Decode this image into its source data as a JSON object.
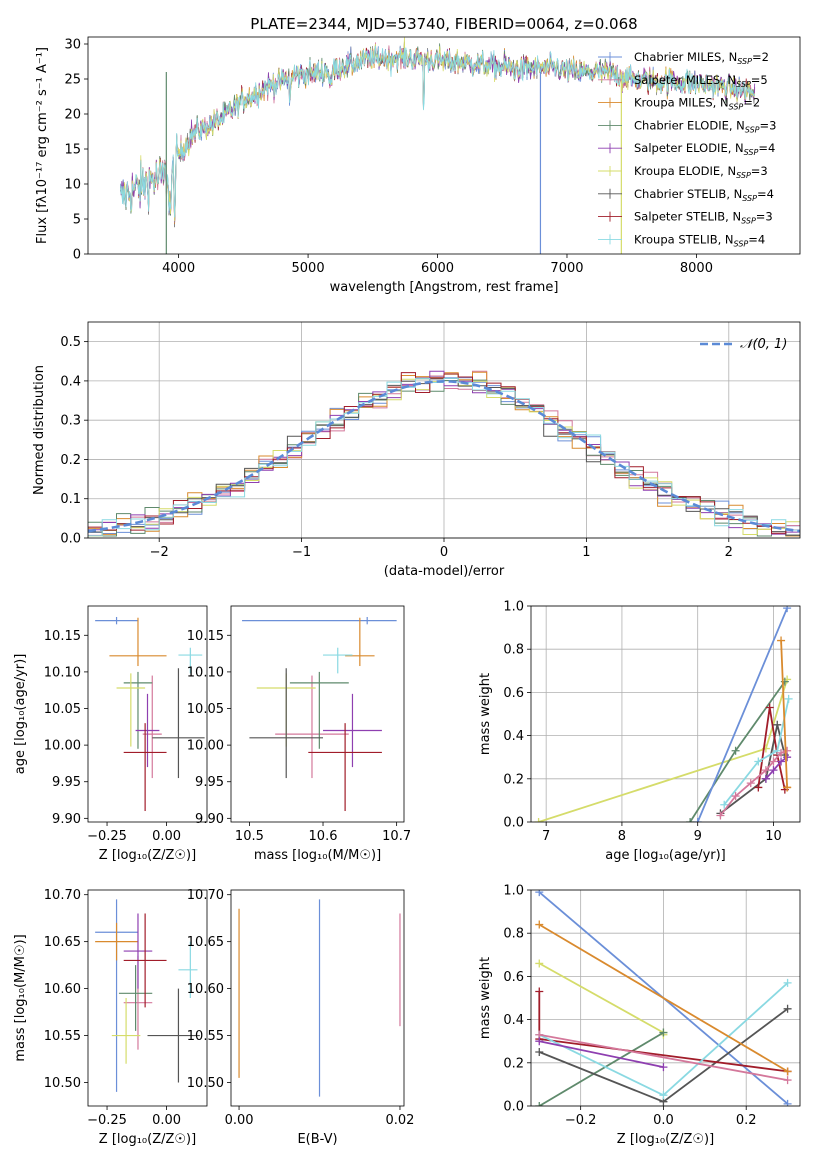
{
  "figure_title": "PLATE=2344, MJD=53740, FIBERID=0064, z=0.068",
  "colors": [
    "#6b8fd8",
    "#d4789b",
    "#d98a2e",
    "#5f8a6c",
    "#8e3fb0",
    "#d5dc6a",
    "#555555",
    "#a11d2a",
    "#8ad9e2"
  ],
  "chart_data": [
    {
      "id": "spectrum",
      "type": "line",
      "title": "PLATE=2344, MJD=53740, FIBERID=0064, z=0.068",
      "xlabel": "wavelength [Angstrom, rest frame]",
      "ylabel": "Flux [fλ10⁻¹⁷ erg cm⁻² s⁻¹ A⁻¹]",
      "xlim": [
        3300,
        8800
      ],
      "ylim": [
        0,
        31
      ],
      "xticks": [
        4000,
        5000,
        6000,
        7000,
        8000
      ],
      "yticks": [
        0,
        5,
        10,
        15,
        20,
        25,
        30
      ],
      "grid": false,
      "legend_position": "right",
      "continuum": [
        [
          3550,
          8
        ],
        [
          3650,
          9
        ],
        [
          3780,
          10.5
        ],
        [
          3880,
          11
        ],
        [
          3950,
          11
        ],
        [
          4000,
          14
        ],
        [
          4100,
          17
        ],
        [
          4200,
          18
        ],
        [
          4300,
          19
        ],
        [
          4500,
          22
        ],
        [
          4700,
          24
        ],
        [
          4900,
          25.5
        ],
        [
          5100,
          26
        ],
        [
          5300,
          27
        ],
        [
          5500,
          28
        ],
        [
          5800,
          28
        ],
        [
          6100,
          27.5
        ],
        [
          6400,
          27
        ],
        [
          6600,
          26.5
        ],
        [
          6900,
          26.5
        ],
        [
          7100,
          26
        ],
        [
          7300,
          26
        ],
        [
          7500,
          25
        ],
        [
          7900,
          24.5
        ],
        [
          8200,
          24
        ],
        [
          8450,
          23
        ]
      ],
      "series": [
        {
          "name": "Chabrier MILES, N_SSP=2",
          "label_main": "Chabrier MILES, N",
          "label_sub": "SSP",
          "label_tail": "=2"
        },
        {
          "name": "Salpeter MILES, N_SSP=5",
          "label_main": "Salpeter MILES, N",
          "label_sub": "SSP",
          "label_tail": "=5"
        },
        {
          "name": "Kroupa MILES, N_SSP=2",
          "label_main": "Kroupa MILES, N",
          "label_sub": "SSP",
          "label_tail": "=2"
        },
        {
          "name": "Chabrier ELODIE, N_SSP=3",
          "label_main": "Chabrier ELODIE, N",
          "label_sub": "SSP",
          "label_tail": "=3"
        },
        {
          "name": "Salpeter ELODIE, N_SSP=4",
          "label_main": "Salpeter ELODIE, N",
          "label_sub": "SSP",
          "label_tail": "=4"
        },
        {
          "name": "Kroupa ELODIE, N_SSP=3",
          "label_main": "Kroupa ELODIE, N",
          "label_sub": "SSP",
          "label_tail": "=3"
        },
        {
          "name": "Chabrier STELIB, N_SSP=4",
          "label_main": "Chabrier STELIB, N",
          "label_sub": "SSP",
          "label_tail": "=4"
        },
        {
          "name": "Salpeter STELIB, N_SSP=3",
          "label_main": "Salpeter STELIB, N",
          "label_sub": "SSP",
          "label_tail": "=3"
        },
        {
          "name": "Kroupa STELIB, N_SSP=4",
          "label_main": "Kroupa STELIB, N",
          "label_sub": "SSP",
          "label_tail": "=4"
        }
      ]
    },
    {
      "id": "residuals",
      "type": "line",
      "xlabel": "(data-model)/error",
      "ylabel": "Normed distribution",
      "xlim": [
        -2.5,
        2.5
      ],
      "ylim": [
        0,
        0.55
      ],
      "xticks": [
        -2,
        -1,
        0,
        1,
        2
      ],
      "yticks": [
        0.0,
        0.1,
        0.2,
        0.3,
        0.4,
        0.5
      ],
      "grid": true,
      "legend_position": "top-right",
      "reference_curve": {
        "name": "𝒩(0, 1)",
        "mean": 0,
        "sigma": 1,
        "style": "dashed"
      },
      "bin_width": 0.1
    },
    {
      "id": "age_vs_Z",
      "type": "scatter",
      "xlabel": "Z [log₁₀(Z/Z☉)]",
      "ylabel": "age [log₁₀(age/yr)]",
      "xlim": [
        -0.33,
        0.17
      ],
      "ylim": [
        9.895,
        10.19
      ],
      "xticks": [
        -0.25,
        0.0
      ],
      "yticks": [
        9.9,
        9.95,
        10.0,
        10.05,
        10.1,
        10.15
      ],
      "points": [
        {
          "x": -0.21,
          "xerr": [
            0.09,
            0.09
          ],
          "y": 10.17,
          "yerr": [
            0.005,
            0.005
          ]
        },
        {
          "x": -0.06,
          "xerr": [
            0.04,
            0.04
          ],
          "y": 10.015,
          "yerr": [
            0.06,
            0.08
          ]
        },
        {
          "x": -0.12,
          "xerr": [
            0.12,
            0.12
          ],
          "y": 10.122,
          "yerr": [
            0.014,
            0.052
          ]
        },
        {
          "x": -0.12,
          "xerr": [
            0.06,
            0.06
          ],
          "y": 10.085,
          "yerr": [
            0.09,
            0.015
          ]
        },
        {
          "x": -0.08,
          "xerr": [
            0.05,
            0.05
          ],
          "y": 10.02,
          "yerr": [
            0.05,
            0.05
          ]
        },
        {
          "x": -0.15,
          "xerr": [
            0.06,
            0.06
          ],
          "y": 10.078,
          "yerr": [
            0.08,
            0.02
          ]
        },
        {
          "x": 0.05,
          "xerr": [
            0.11,
            0.11
          ],
          "y": 10.01,
          "yerr": [
            0.055,
            0.095
          ]
        },
        {
          "x": -0.09,
          "xerr": [
            0.09,
            0.09
          ],
          "y": 9.99,
          "yerr": [
            0.08,
            0.04
          ]
        },
        {
          "x": 0.1,
          "xerr": [
            0.05,
            0.05
          ],
          "y": 10.123,
          "yerr": [
            0.025,
            0.01
          ]
        }
      ]
    },
    {
      "id": "age_vs_mass",
      "type": "scatter",
      "xlabel": "mass [log₁₀(M/M☉)]",
      "ylabel": "",
      "xlim": [
        10.475,
        10.71
      ],
      "ylim": [
        9.895,
        10.19
      ],
      "xticks": [
        10.5,
        10.6,
        10.7
      ],
      "yticks": [
        9.9,
        9.95,
        10.0,
        10.05,
        10.1,
        10.15
      ],
      "points": [
        {
          "x": 10.66,
          "xerr": [
            0.17,
            0.04
          ],
          "y": 10.17,
          "yerr": [
            0.005,
            0.005
          ]
        },
        {
          "x": 10.585,
          "xerr": [
            0.05,
            0.05
          ],
          "y": 10.015,
          "yerr": [
            0.06,
            0.08
          ]
        },
        {
          "x": 10.65,
          "xerr": [
            0.02,
            0.02
          ],
          "y": 10.122,
          "yerr": [
            0.014,
            0.052
          ]
        },
        {
          "x": 10.595,
          "xerr": [
            0.04,
            0.04
          ],
          "y": 10.085,
          "yerr": [
            0.09,
            0.015
          ]
        },
        {
          "x": 10.64,
          "xerr": [
            0.04,
            0.04
          ],
          "y": 10.02,
          "yerr": [
            0.05,
            0.05
          ]
        },
        {
          "x": 10.55,
          "xerr": [
            0.04,
            0.04
          ],
          "y": 10.078,
          "yerr": [
            0.08,
            0.02
          ]
        },
        {
          "x": 10.55,
          "xerr": [
            0.05,
            0.05
          ],
          "y": 10.01,
          "yerr": [
            0.055,
            0.095
          ]
        },
        {
          "x": 10.63,
          "xerr": [
            0.05,
            0.05
          ],
          "y": 9.99,
          "yerr": [
            0.08,
            0.04
          ]
        },
        {
          "x": 10.62,
          "xerr": [
            0.02,
            0.02
          ],
          "y": 10.123,
          "yerr": [
            0.025,
            0.01
          ]
        }
      ]
    },
    {
      "id": "mass_weight_vs_age",
      "type": "line",
      "xlabel": "age [log₁₀(age/yr)]",
      "ylabel": "mass weight",
      "xlim": [
        6.8,
        10.35
      ],
      "ylim": [
        0,
        1.0
      ],
      "xticks": [
        7,
        8,
        9,
        10
      ],
      "yticks": [
        0.0,
        0.2,
        0.4,
        0.6,
        0.8,
        1.0
      ],
      "grid": true,
      "series": [
        {
          "x": [
            9.0,
            10.18
          ],
          "y": [
            0.0,
            0.99
          ]
        },
        {
          "x": [
            9.3,
            9.5,
            9.7,
            9.9,
            10.0,
            10.1,
            10.18
          ],
          "y": [
            0.03,
            0.12,
            0.18,
            0.24,
            0.28,
            0.32,
            0.33
          ]
        },
        {
          "x": [
            10.18,
            10.1,
            10.18
          ],
          "y": [
            0.16,
            0.84,
            0.16
          ]
        },
        {
          "x": [
            8.9,
            9.5,
            10.15
          ],
          "y": [
            0.0,
            0.33,
            0.65
          ]
        },
        {
          "x": [
            9.9,
            10.0,
            10.1,
            10.18
          ],
          "y": [
            0.2,
            0.24,
            0.28,
            0.3
          ]
        },
        {
          "x": [
            6.9,
            9.9,
            10.18
          ],
          "y": [
            0.0,
            0.34,
            0.66
          ]
        },
        {
          "x": [
            9.3,
            9.9,
            10.05,
            10.15
          ],
          "y": [
            0.04,
            0.2,
            0.45,
            0.31
          ]
        },
        {
          "x": [
            9.8,
            9.95,
            10.05,
            10.15
          ],
          "y": [
            0.16,
            0.53,
            0.31,
            0.15
          ]
        },
        {
          "x": [
            9.35,
            9.8,
            10.05,
            10.2
          ],
          "y": [
            0.08,
            0.28,
            0.33,
            0.57
          ]
        }
      ]
    },
    {
      "id": "mass_vs_Z",
      "type": "scatter",
      "xlabel": "Z [log₁₀(Z/Z☉)]",
      "ylabel": "mass [log₁₀(M/M☉)]",
      "xlim": [
        -0.33,
        0.17
      ],
      "ylim": [
        10.475,
        10.705
      ],
      "xticks": [
        -0.25,
        0.0
      ],
      "yticks": [
        10.5,
        10.55,
        10.6,
        10.65,
        10.7
      ],
      "points": [
        {
          "x": -0.21,
          "xerr": [
            0.09,
            0.09
          ],
          "y": 10.66,
          "yerr": [
            0.17,
            0.035
          ]
        },
        {
          "x": -0.12,
          "xerr": [
            0.06,
            0.06
          ],
          "y": 10.585,
          "yerr": [
            0.05,
            0.05
          ]
        },
        {
          "x": -0.21,
          "xerr": [
            0.09,
            0.09
          ],
          "y": 10.65,
          "yerr": [
            0.02,
            0.02
          ]
        },
        {
          "x": -0.13,
          "xerr": [
            0.07,
            0.07
          ],
          "y": 10.595,
          "yerr": [
            0.04,
            0.03
          ]
        },
        {
          "x": -0.12,
          "xerr": [
            0.06,
            0.06
          ],
          "y": 10.64,
          "yerr": [
            0.04,
            0.04
          ]
        },
        {
          "x": -0.17,
          "xerr": [
            0.06,
            0.06
          ],
          "y": 10.55,
          "yerr": [
            0.03,
            0.04
          ]
        },
        {
          "x": 0.05,
          "xerr": [
            0.13,
            0.09
          ],
          "y": 10.55,
          "yerr": [
            0.05,
            0.05
          ]
        },
        {
          "x": -0.09,
          "xerr": [
            0.09,
            0.09
          ],
          "y": 10.63,
          "yerr": [
            0.05,
            0.05
          ]
        },
        {
          "x": 0.1,
          "xerr": [
            0.05,
            0.03
          ],
          "y": 10.62,
          "yerr": [
            0.03,
            0.03
          ]
        }
      ]
    },
    {
      "id": "mass_vs_ebv",
      "type": "scatter",
      "xlabel": "E(B-V)",
      "ylabel": "",
      "xlim": [
        -0.001,
        0.0205
      ],
      "ylim": [
        10.475,
        10.705
      ],
      "xticks": [
        0.0,
        0.02
      ],
      "yticks": [
        10.5,
        10.55,
        10.6,
        10.65,
        10.7
      ],
      "points": [
        {
          "x": 0.01,
          "y": 10.6,
          "yerr": [
            0.115,
            0.095
          ]
        },
        {
          "x": 0.02,
          "y": 10.62,
          "yerr": [
            0.06,
            0.06
          ]
        },
        {
          "x": 0.0,
          "y": 10.6,
          "yerr": [
            0.095,
            0.085
          ]
        }
      ]
    },
    {
      "id": "mass_weight_vs_Z",
      "type": "line",
      "xlabel": "Z [log₁₀(Z/Z☉)]",
      "ylabel": "mass weight",
      "xlim": [
        -0.32,
        0.33
      ],
      "ylim": [
        0,
        1.0
      ],
      "xticks": [
        -0.2,
        0.0,
        0.2
      ],
      "yticks": [
        0.0,
        0.2,
        0.4,
        0.6,
        0.8,
        1.0
      ],
      "grid": true,
      "series": [
        {
          "x": [
            -0.3,
            0.3
          ],
          "y": [
            0.99,
            0.01
          ]
        },
        {
          "x": [
            -0.3,
            0.3
          ],
          "y": [
            0.33,
            0.12
          ]
        },
        {
          "x": [
            -0.3,
            0.3
          ],
          "y": [
            0.84,
            0.16
          ]
        },
        {
          "x": [
            -0.3,
            0.0
          ],
          "y": [
            0.0,
            0.34
          ]
        },
        {
          "x": [
            -0.3,
            0.0
          ],
          "y": [
            0.3,
            0.18
          ]
        },
        {
          "x": [
            -0.3,
            0.0,
            0.0
          ],
          "y": [
            0.66,
            0.34,
            0.33
          ]
        },
        {
          "x": [
            -0.3,
            0.0,
            0.3
          ],
          "y": [
            0.25,
            0.02,
            0.45
          ]
        },
        {
          "x": [
            -0.3,
            -0.3,
            0.3
          ],
          "y": [
            0.53,
            0.31,
            0.16
          ]
        },
        {
          "x": [
            -0.3,
            0.0,
            0.3
          ],
          "y": [
            0.33,
            0.05,
            0.57
          ]
        }
      ]
    }
  ]
}
